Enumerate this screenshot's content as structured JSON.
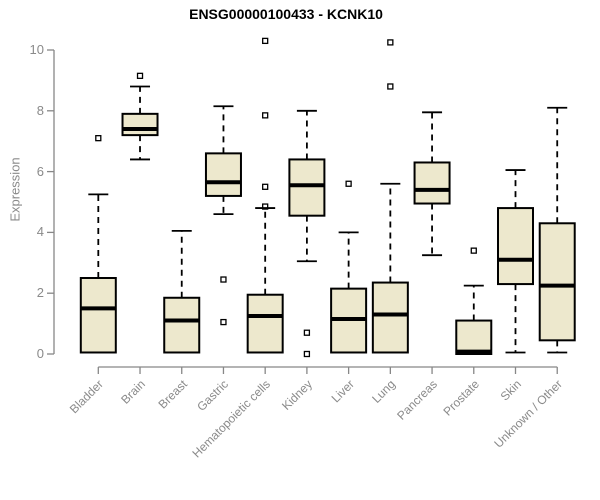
{
  "chart_data": {
    "type": "boxplot",
    "title": "ENSG00000100433 - KCNK10",
    "xlabel": "",
    "ylabel": "Expression",
    "ylim": [
      0,
      10.9
    ],
    "yticks": [
      0,
      2,
      4,
      6,
      8,
      10
    ],
    "grid": false,
    "legend": false,
    "categories": [
      "Bladder",
      "Brain",
      "Breast",
      "Gastric",
      "Hematopoietic cells",
      "Kidney",
      "Liver",
      "Lung",
      "Pancreas",
      "Prostate",
      "Skin",
      "Unknown / Other"
    ],
    "boxes": [
      {
        "name": "Bladder",
        "whisker_low": 0.05,
        "q1": 0.05,
        "median": 1.5,
        "q3": 2.5,
        "whisker_high": 5.25,
        "outliers": [
          7.1
        ]
      },
      {
        "name": "Brain",
        "whisker_low": 6.4,
        "q1": 7.2,
        "median": 7.4,
        "q3": 7.9,
        "whisker_high": 8.8,
        "outliers": [
          9.15
        ]
      },
      {
        "name": "Breast",
        "whisker_low": 0.05,
        "q1": 0.05,
        "median": 1.1,
        "q3": 1.85,
        "whisker_high": 4.05,
        "outliers": []
      },
      {
        "name": "Gastric",
        "whisker_low": 4.6,
        "q1": 5.2,
        "median": 5.65,
        "q3": 6.6,
        "whisker_high": 8.15,
        "outliers": [
          2.45,
          1.05
        ]
      },
      {
        "name": "Hematopoietic cells",
        "whisker_low": 0.05,
        "q1": 0.05,
        "median": 1.25,
        "q3": 1.95,
        "whisker_high": 4.8,
        "outliers": [
          10.3,
          7.85,
          5.5,
          4.85
        ]
      },
      {
        "name": "Kidney",
        "whisker_low": 3.05,
        "q1": 4.55,
        "median": 5.55,
        "q3": 6.4,
        "whisker_high": 8.0,
        "outliers": [
          0.7,
          0.0
        ]
      },
      {
        "name": "Liver",
        "whisker_low": 0.05,
        "q1": 0.05,
        "median": 1.15,
        "q3": 2.15,
        "whisker_high": 4.0,
        "outliers": [
          5.6
        ]
      },
      {
        "name": "Lung",
        "whisker_low": 0.05,
        "q1": 0.05,
        "median": 1.3,
        "q3": 2.35,
        "whisker_high": 5.6,
        "outliers": [
          10.25,
          8.8
        ]
      },
      {
        "name": "Pancreas",
        "whisker_low": 3.25,
        "q1": 4.95,
        "median": 5.4,
        "q3": 6.3,
        "whisker_high": 7.95,
        "outliers": []
      },
      {
        "name": "Prostate",
        "whisker_low": 0.0,
        "q1": 0.0,
        "median": 0.08,
        "q3": 1.1,
        "whisker_high": 2.25,
        "outliers": [
          3.4
        ]
      },
      {
        "name": "Skin",
        "whisker_low": 0.05,
        "q1": 2.3,
        "median": 3.1,
        "q3": 4.8,
        "whisker_high": 6.05,
        "outliers": []
      },
      {
        "name": "Unknown / Other",
        "whisker_low": 0.05,
        "q1": 0.45,
        "median": 2.25,
        "q3": 4.3,
        "whisker_high": 8.1,
        "outliers": []
      }
    ],
    "colors": {
      "box_fill": "#EDE8CD",
      "box_border": "#000000",
      "median": "#000000",
      "whisker": "#000000",
      "outlier": "#000000",
      "axis": "#878787",
      "tick_label": "#8a8a8a",
      "title": "#000000"
    }
  }
}
